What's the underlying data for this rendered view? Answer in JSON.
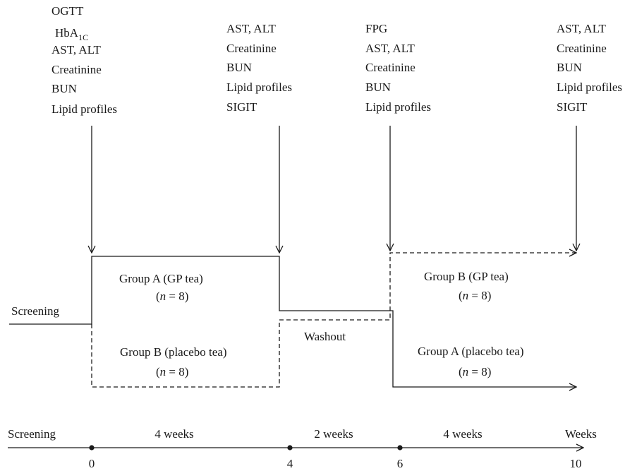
{
  "measurements": {
    "baseline": [
      "OGTT",
      "HbA",
      "AST, ALT",
      "Creatinine",
      "BUN",
      "Lipid profiles"
    ],
    "baseline_subscript": "1C",
    "week4": [
      "AST, ALT",
      "Creatinine",
      "BUN",
      "Lipid profiles",
      "SIGIT"
    ],
    "week6": [
      "FPG",
      "AST, ALT",
      "Creatinine",
      "BUN",
      "Lipid profiles"
    ],
    "week10": [
      "AST, ALT",
      "Creatinine",
      "BUN",
      "Lipid profiles",
      "SIGIT"
    ]
  },
  "phases": {
    "screening": "Screening",
    "period1_upper": {
      "group": "Group A (GP tea)",
      "n_var": "n",
      "n_rest": " = 8)"
    },
    "period1_lower": {
      "group": "Group B (placebo tea)",
      "n_var": "n",
      "n_rest": " = 8)"
    },
    "washout": "Washout",
    "period2_upper": {
      "group": "Group B (GP tea)",
      "n_var": "n",
      "n_rest": " = 8)"
    },
    "period2_lower": {
      "group": "Group A (placebo tea)",
      "n_var": "n",
      "n_rest": " = 8)"
    }
  },
  "timeline": {
    "start_label": "Screening",
    "unit_label": "Weeks",
    "ticks": [
      "0",
      "4",
      "6",
      "10"
    ],
    "durations": [
      "4 weeks",
      "2 weeks",
      "4 weeks"
    ]
  }
}
